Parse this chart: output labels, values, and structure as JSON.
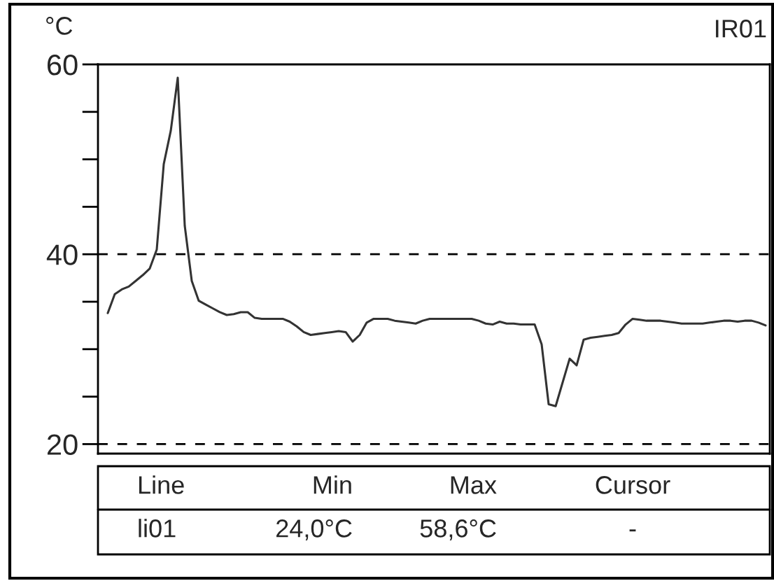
{
  "chart_data": {
    "type": "line",
    "title": "IR01",
    "ylabel": "°C",
    "categories": [
      null,
      null,
      null,
      null,
      null,
      null,
      null,
      null,
      null,
      null,
      null,
      null,
      null,
      null,
      null,
      null,
      null,
      null,
      null,
      null,
      null,
      null,
      null,
      null,
      null,
      null,
      null,
      null,
      null,
      null,
      null,
      null,
      null,
      null,
      null,
      null,
      null,
      null,
      null,
      null,
      null,
      null,
      null,
      null,
      null,
      null,
      null,
      null,
      null,
      null,
      null,
      null,
      null,
      null,
      null,
      null,
      null,
      null,
      null,
      null,
      null,
      null,
      null,
      null,
      null,
      null,
      null,
      null,
      null,
      null,
      null,
      null,
      null,
      null,
      null,
      null,
      null,
      null,
      null,
      null,
      null,
      null,
      null,
      null,
      null,
      null,
      null,
      null,
      null,
      null,
      null,
      null,
      null,
      null,
      null
    ],
    "series": [
      {
        "color": "#333333",
        "values": [
          33.8,
          35.8,
          36.3,
          36.6,
          37.2,
          37.8,
          38.5,
          40.5,
          49.5,
          53,
          58.6,
          43,
          37.2,
          35.1,
          34.7,
          34.3,
          33.9,
          33.6,
          33.7,
          33.9,
          33.9,
          33.3,
          33.2,
          33.2,
          33.2,
          33.2,
          32.9,
          32.4,
          31.8,
          31.5,
          31.6,
          31.7,
          31.8,
          31.9,
          31.8,
          30.8,
          31.5,
          32.8,
          33.2,
          33.2,
          33.2,
          33.0,
          32.9,
          32.8,
          32.7,
          33.0,
          33.2,
          33.2,
          33.2,
          33.2,
          33.2,
          33.2,
          33.2,
          33.0,
          32.7,
          32.6,
          32.9,
          32.7,
          32.7,
          32.6,
          32.6,
          32.6,
          30.5,
          24.2,
          24.0,
          26.5,
          29.0,
          28.3,
          31.0,
          31.2,
          31.3,
          31.4,
          31.5,
          31.7,
          32.6,
          33.2,
          33.1,
          33.0,
          33.0,
          33.0,
          32.9,
          32.8,
          32.7,
          32.7,
          32.7,
          32.7,
          32.8,
          32.9,
          33.0,
          33.0,
          32.9,
          33.0,
          33.0,
          32.8,
          32.5
        ]
      }
    ],
    "ylim": [
      19,
      60
    ],
    "yticks": [
      20,
      {
        "value": 25,
        "label": null
      },
      {
        "value": 30,
        "label": null
      },
      {
        "value": 35,
        "label": null
      },
      40,
      {
        "value": 45,
        "label": null
      },
      {
        "value": 50,
        "label": null
      },
      {
        "value": 55,
        "label": null
      },
      60
    ],
    "ref_lines": [
      {
        "axis": "y",
        "value": 40,
        "color": "#000000",
        "line_style": "dashed"
      },
      {
        "axis": "y",
        "value": 20,
        "color": "#000000",
        "line_style": "dashed"
      }
    ],
    "grid": false,
    "legend": false,
    "marker": "none",
    "line_style": "solid",
    "annotations": [
      "Line",
      "Min",
      "Max",
      "Cursor",
      "li01",
      "24,0°C",
      "58,6°C",
      "-"
    ]
  }
}
